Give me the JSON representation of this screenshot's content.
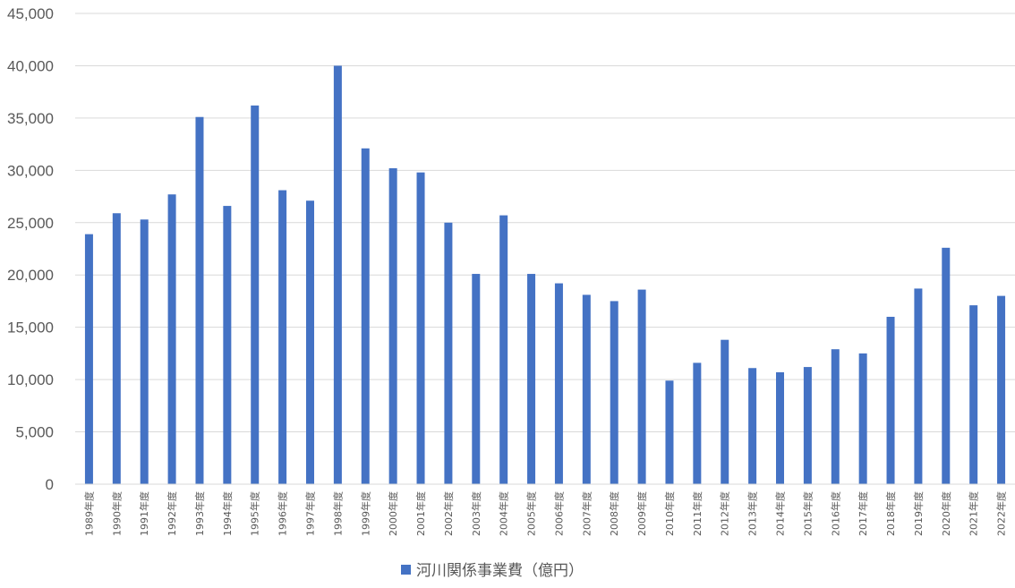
{
  "chart_data": {
    "type": "bar",
    "categories": [
      "1989年度",
      "1990年度",
      "1991年度",
      "1992年度",
      "1993年度",
      "1994年度",
      "1995年度",
      "1996年度",
      "1997年度",
      "1998年度",
      "1999年度",
      "2000年度",
      "2001年度",
      "2002年度",
      "2003年度",
      "2004年度",
      "2005年度",
      "2006年度",
      "2007年度",
      "2008年度",
      "2009年度",
      "2010年度",
      "2011年度",
      "2012年度",
      "2013年度",
      "2014年度",
      "2015年度",
      "2016年度",
      "2017年度",
      "2018年度",
      "2019年度",
      "2020年度",
      "2021年度",
      "2022年度"
    ],
    "series": [
      {
        "name": "河川関係事業費（億円）",
        "color": "#4472C4",
        "values": [
          23900,
          25900,
          25300,
          27700,
          35100,
          26600,
          36200,
          28100,
          27100,
          40000,
          32100,
          30200,
          29800,
          25000,
          20100,
          25700,
          20100,
          19200,
          18100,
          17500,
          18600,
          9900,
          11600,
          13800,
          11100,
          10700,
          11200,
          12900,
          12500,
          16000,
          18700,
          22600,
          17100,
          18000
        ]
      }
    ],
    "y_ticks": [
      "0",
      "5,000",
      "10,000",
      "15,000",
      "20,000",
      "25,000",
      "30,000",
      "35,000",
      "40,000",
      "45,000"
    ],
    "ylim": [
      0,
      45000
    ],
    "grid": true,
    "legend_position": "bottom",
    "title": "",
    "xlabel": "",
    "ylabel": ""
  }
}
